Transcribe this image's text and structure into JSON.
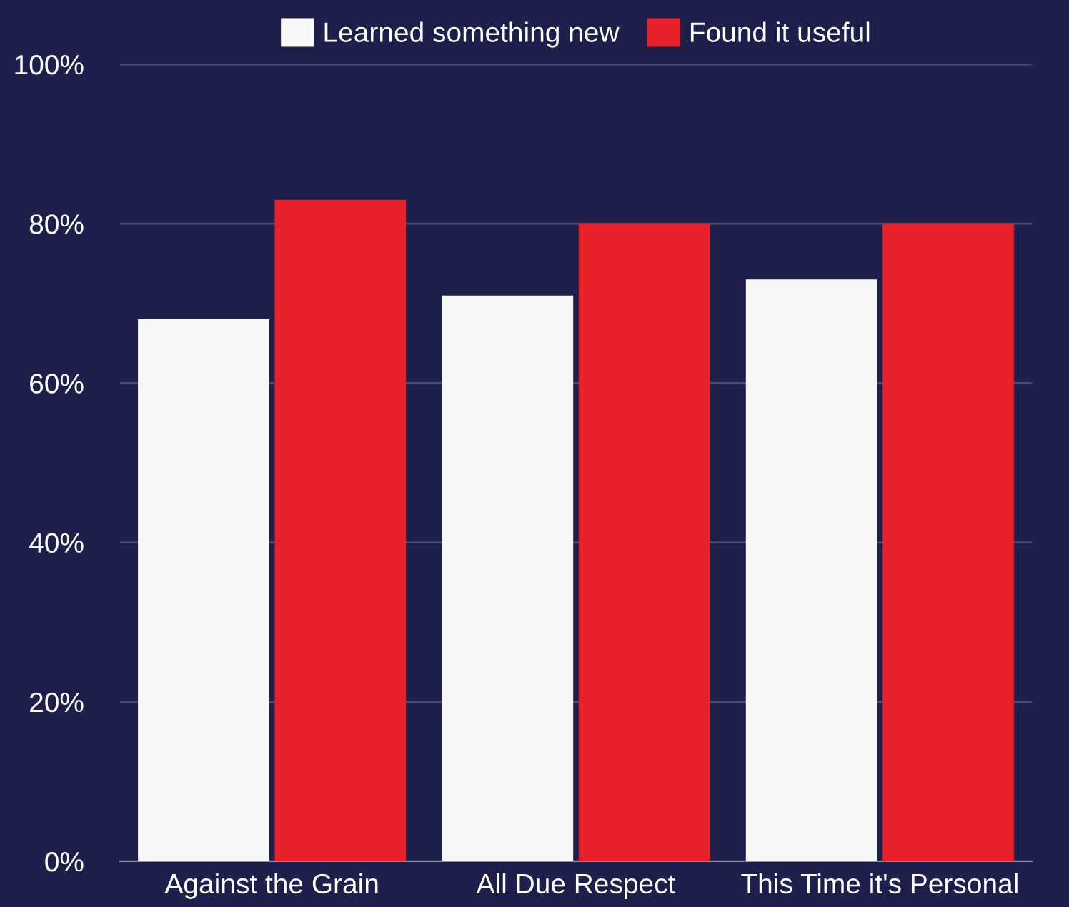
{
  "chart_data": {
    "type": "bar",
    "categories": [
      "Against the Grain",
      "All Due Respect",
      "This Time it's Personal"
    ],
    "series": [
      {
        "name": "Learned something new",
        "color": "#f7f7f7",
        "values": [
          68,
          71,
          73
        ]
      },
      {
        "name": "Found it useful",
        "color": "#e8202a",
        "values": [
          83,
          80,
          80
        ]
      }
    ],
    "ylim": [
      0,
      100
    ],
    "yticks": [
      {
        "value": 0,
        "label": "0%"
      },
      {
        "value": 20,
        "label": "20%"
      },
      {
        "value": 40,
        "label": "40%"
      },
      {
        "value": 60,
        "label": "60%"
      },
      {
        "value": 80,
        "label": "80%"
      },
      {
        "value": 100,
        "label": "100%"
      }
    ],
    "grid": "y",
    "legend": "top"
  }
}
